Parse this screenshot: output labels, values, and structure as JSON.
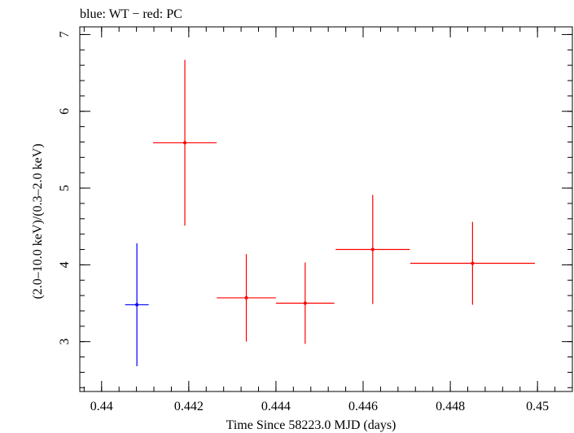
{
  "chart_data": {
    "type": "scatter",
    "title": "blue: WT − red: PC",
    "xlabel": "Time Since 58223.0 MJD (days)",
    "ylabel": "(2.0–10.0 keV)/(0.3–2.0 keV)",
    "xlim": [
      0.4395,
      0.4508
    ],
    "ylim": [
      2.35,
      7.1
    ],
    "x_ticks": [
      0.44,
      0.442,
      0.444,
      0.446,
      0.448,
      0.45
    ],
    "x_tick_labels": [
      "0.44",
      "0.442",
      "0.444",
      "0.446",
      "0.448",
      "0.45"
    ],
    "y_ticks": [
      3,
      4,
      5,
      6,
      7
    ],
    "y_tick_labels": [
      "3",
      "4",
      "5",
      "6",
      "7"
    ],
    "grid": false,
    "series": [
      {
        "color": "#0000ff",
        "points": [
          {
            "x": 0.44081,
            "xerr": 0.00027,
            "y": 3.48,
            "yerr_low": 0.8,
            "yerr_high": 0.8
          }
        ]
      },
      {
        "color": "#ff0000",
        "points": [
          {
            "x": 0.44191,
            "xerr": 0.00073,
            "y": 5.59,
            "yerr_low": 1.08,
            "yerr_high": 1.08
          },
          {
            "x": 0.44332,
            "xerr": 0.00068,
            "y": 3.57,
            "yerr_low": 0.57,
            "yerr_high": 0.57
          },
          {
            "x": 0.44467,
            "xerr": 0.00067,
            "y": 3.5,
            "yerr_low": 0.53,
            "yerr_high": 0.53
          },
          {
            "x": 0.44622,
            "xerr": 0.00085,
            "y": 4.2,
            "yerr_low": 0.71,
            "yerr_high": 0.71
          },
          {
            "x": 0.44851,
            "xerr": 0.00143,
            "y": 4.02,
            "yerr_low": 0.54,
            "yerr_high": 0.54
          }
        ]
      }
    ]
  }
}
